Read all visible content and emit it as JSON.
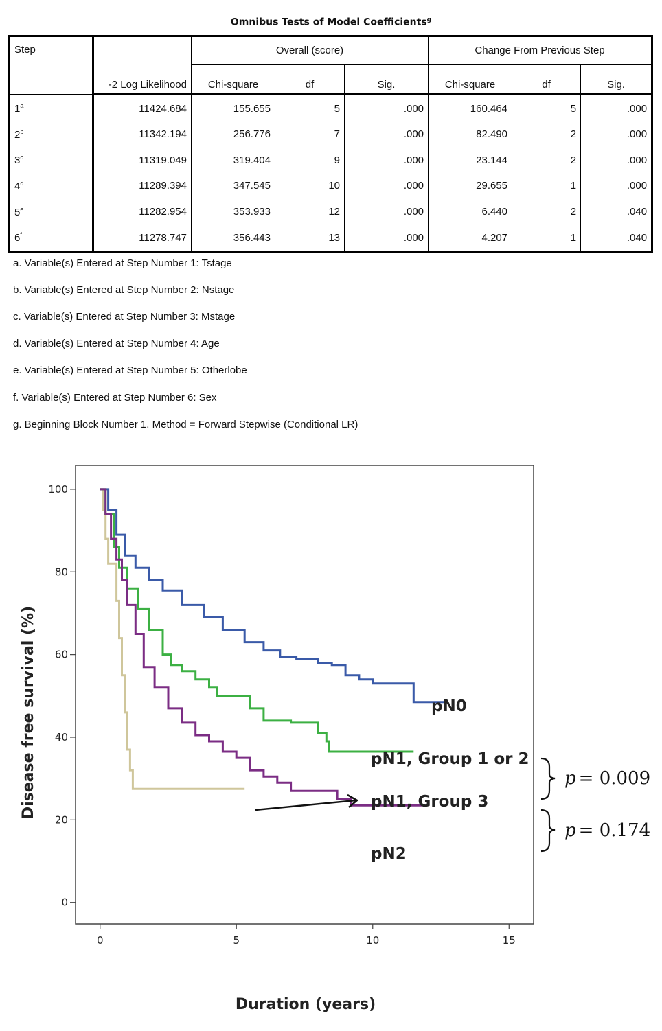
{
  "table": {
    "title": "Omnibus Tests of Model Coefficients",
    "title_sup": "g",
    "headers": {
      "step": "Step",
      "loglik": "-2 Log Likelihood",
      "overall": "Overall (score)",
      "change": "Change From Previous Step",
      "chi": "Chi-square",
      "df": "df",
      "sig": "Sig."
    },
    "rows": [
      {
        "step": "1",
        "sup": "a",
        "loglik": "11424.684",
        "chi1": "155.655",
        "df1": "5",
        "sig1": ".000",
        "chi2": "160.464",
        "df2": "5",
        "sig2": ".000"
      },
      {
        "step": "2",
        "sup": "b",
        "loglik": "11342.194",
        "chi1": "256.776",
        "df1": "7",
        "sig1": ".000",
        "chi2": "82.490",
        "df2": "2",
        "sig2": ".000"
      },
      {
        "step": "3",
        "sup": "c",
        "loglik": "11319.049",
        "chi1": "319.404",
        "df1": "9",
        "sig1": ".000",
        "chi2": "23.144",
        "df2": "2",
        "sig2": ".000"
      },
      {
        "step": "4",
        "sup": "d",
        "loglik": "11289.394",
        "chi1": "347.545",
        "df1": "10",
        "sig1": ".000",
        "chi2": "29.655",
        "df2": "1",
        "sig2": ".000"
      },
      {
        "step": "5",
        "sup": "e",
        "loglik": "11282.954",
        "chi1": "353.933",
        "df1": "12",
        "sig1": ".000",
        "chi2": "6.440",
        "df2": "2",
        "sig2": ".040"
      },
      {
        "step": "6",
        "sup": "f",
        "loglik": "11278.747",
        "chi1": "356.443",
        "df1": "13",
        "sig1": ".000",
        "chi2": "4.207",
        "df2": "1",
        "sig2": ".040"
      }
    ],
    "footnotes": [
      "a. Variable(s) Entered at Step Number 1: Tstage",
      "b. Variable(s) Entered at Step Number 2: Nstage",
      "c. Variable(s) Entered at Step Number 3: Mstage",
      "d. Variable(s) Entered at Step Number 4: Age",
      "e. Variable(s) Entered at Step Number 5: Otherlobe",
      "f. Variable(s) Entered at Step Number 6: Sex",
      "g. Beginning Block Number 1. Method = Forward Stepwise (Conditional LR)"
    ]
  },
  "chart_data": {
    "type": "line",
    "xlabel": "Duration (years)",
    "ylabel": "Disease free survival (%)",
    "xlim": [
      -0.9,
      15.9
    ],
    "ylim": [
      -5.2,
      105.8
    ],
    "xticks": [
      0,
      5,
      10,
      15
    ],
    "yticks": [
      0,
      20,
      40,
      60,
      80,
      100
    ],
    "grid": false,
    "legend": "direct labels right of curves",
    "series": [
      {
        "name": "pN0",
        "color": "#3a5aa8",
        "x": [
          0,
          0.3,
          0.6,
          0.9,
          1.3,
          1.8,
          2.3,
          3.0,
          3.8,
          4.5,
          5.3,
          6.0,
          6.6,
          7.2,
          8.0,
          8.5,
          9.0,
          9.5,
          10.0,
          11.0,
          11.5,
          11.5,
          12.6
        ],
        "y": [
          100,
          95,
          89,
          84,
          81,
          78,
          75.5,
          72,
          69,
          66,
          63,
          61,
          59.5,
          59,
          58,
          57.5,
          55,
          54,
          53,
          53,
          53,
          48.5,
          48.5
        ]
      },
      {
        "name": "pN1, Group 1 or 2",
        "color": "#3cb043",
        "x": [
          0,
          0.2,
          0.5,
          0.7,
          1.0,
          1.4,
          1.8,
          2.3,
          2.6,
          3.0,
          3.5,
          4.0,
          4.3,
          5.0,
          5.5,
          6.0,
          7.0,
          7.8,
          8.0,
          8.3,
          8.4,
          9.0,
          11.5
        ],
        "y": [
          100,
          94,
          86,
          81,
          76,
          71,
          66,
          60,
          57.5,
          56,
          54,
          52,
          50,
          50,
          47,
          44,
          43.5,
          43.5,
          41,
          39,
          36.5,
          36.5,
          36.5
        ]
      },
      {
        "name": "pN1, Group 3",
        "color": "#cfc69b",
        "x": [
          0,
          0.1,
          0.2,
          0.3,
          0.4,
          0.5,
          0.6,
          0.7,
          0.8,
          0.9,
          1.0,
          1.1,
          1.2,
          2.5,
          5.3
        ],
        "y": [
          100,
          95,
          88,
          82,
          82,
          82,
          73,
          64,
          55,
          46,
          37,
          32,
          27.5,
          27.5,
          27.5
        ]
      },
      {
        "name": "pN2",
        "color": "#7b2d84",
        "x": [
          0,
          0.2,
          0.4,
          0.6,
          0.8,
          1.0,
          1.3,
          1.6,
          2.0,
          2.5,
          3.0,
          3.5,
          4.0,
          4.5,
          5.0,
          5.5,
          6.0,
          6.5,
          7.0,
          7.5,
          8.0,
          8.7,
          9.0,
          9.2,
          10.0,
          11.8
        ],
        "y": [
          100,
          94,
          88,
          83,
          78,
          72,
          65,
          57,
          52,
          47,
          43.5,
          40.5,
          39,
          36.5,
          35,
          32,
          30.5,
          29,
          27,
          27,
          27,
          25,
          25,
          23.5,
          23.5,
          23.5
        ]
      }
    ],
    "annotations": [
      {
        "text": "pN0",
        "x": 12.1,
        "y": 51.5
      },
      {
        "text": "pN1, Group 1 or 2",
        "x": 9.9,
        "y": 39
      },
      {
        "text": "pN1, Group 3",
        "x": 9.9,
        "y": 29.5
      },
      {
        "text": "pN2",
        "x": 9.9,
        "y": 18.5
      },
      {
        "p_label": "p",
        "text": "= 0.009"
      },
      {
        "p_label": "p",
        "text": "= 0.174"
      }
    ]
  }
}
